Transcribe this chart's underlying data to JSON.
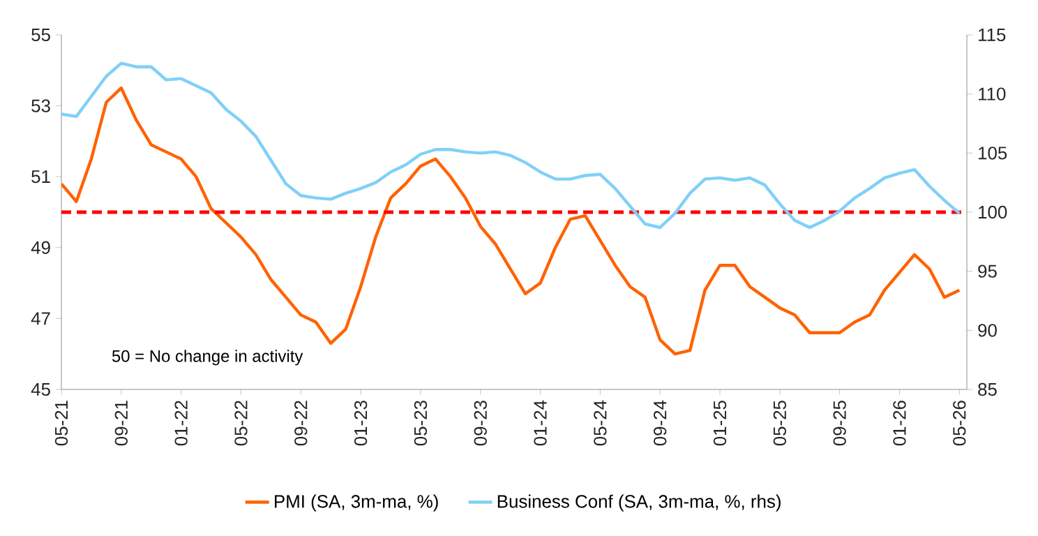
{
  "chart_data": {
    "type": "line",
    "categories": [
      "05-21",
      null,
      null,
      null,
      "09-21",
      null,
      null,
      null,
      "01-22",
      null,
      null,
      null,
      "05-22",
      null,
      null,
      null,
      "09-22",
      null,
      null,
      null,
      "01-23",
      null,
      null,
      null,
      "05-23",
      null,
      null,
      null,
      "09-23",
      null,
      null,
      null,
      "01-24",
      null,
      null,
      null,
      "05-24",
      null,
      null,
      null,
      "09-24",
      null,
      null,
      null,
      "01-25",
      null,
      null,
      null,
      "05-25",
      null,
      null,
      null,
      "09-25",
      null,
      null,
      null,
      "01-26",
      null,
      null,
      null,
      "05-26"
    ],
    "series": [
      {
        "name": "PMI (SA, 3m-ma, %)",
        "color": "#ff6200",
        "values": [
          50.8,
          50.3,
          51.5,
          53.1,
          53.5,
          52.6,
          51.9,
          51.7,
          51.5,
          51.0,
          50.1,
          49.7,
          49.3,
          48.8,
          48.1,
          47.6,
          47.1,
          46.9,
          46.3,
          46.7,
          47.9,
          49.3,
          50.4,
          50.8,
          51.3,
          51.5,
          51.0,
          50.4,
          49.6,
          49.1,
          48.4,
          47.7,
          48.0,
          49.0,
          49.8,
          49.9,
          49.2,
          48.5,
          47.9,
          47.6,
          46.4,
          46.0,
          46.1,
          47.8,
          48.5,
          48.5,
          47.9,
          47.6,
          47.3,
          47.1,
          46.6,
          46.6,
          46.6,
          46.9,
          47.1,
          47.8,
          48.3,
          48.8,
          48.4,
          47.6,
          47.8
        ]
      },
      {
        "name": "Business Conf (SA, 3m-ma, %, rhs)",
        "color": "#80d0f8",
        "axis": "y2",
        "values": [
          108.3,
          108.1,
          109.8,
          111.5,
          112.6,
          112.3,
          112.3,
          111.2,
          111.3,
          110.7,
          110.1,
          108.7,
          107.7,
          106.4,
          104.4,
          102.4,
          101.4,
          101.2,
          101.1,
          101.6,
          102.0,
          102.5,
          103.4,
          104.0,
          104.9,
          105.3,
          105.3,
          105.1,
          105.0,
          105.1,
          104.8,
          104.2,
          103.4,
          102.8,
          102.8,
          103.1,
          103.2,
          102.0,
          100.5,
          99.0,
          98.7,
          99.9,
          101.6,
          102.8,
          102.9,
          102.7,
          102.9,
          102.3,
          100.7,
          99.3,
          98.7,
          99.3,
          100.1,
          101.2,
          102.0,
          102.9,
          103.3,
          103.6,
          102.2,
          101.0,
          99.9
        ]
      }
    ],
    "ylim": [
      45,
      55
    ],
    "yticks": [
      45,
      47,
      49,
      51,
      53,
      55
    ],
    "y2lim": [
      85,
      115
    ],
    "y2ticks": [
      85,
      90,
      95,
      100,
      105,
      110,
      115
    ],
    "ref_lines": [
      {
        "axis": "y2",
        "value": 100,
        "color": "#ff0000",
        "line_style": "dashed"
      }
    ],
    "annotations": [
      "50 = No change in activity"
    ],
    "legend": "bottom",
    "grid": false
  }
}
